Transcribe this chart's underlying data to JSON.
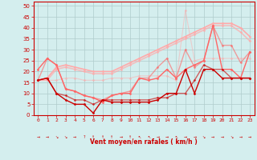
{
  "x": [
    0,
    1,
    2,
    3,
    4,
    5,
    6,
    7,
    8,
    9,
    10,
    11,
    12,
    13,
    14,
    15,
    16,
    17,
    18,
    19,
    20,
    21,
    22,
    23
  ],
  "lines": [
    {
      "y": [
        16,
        17,
        22,
        23,
        22,
        21,
        20,
        20,
        20,
        22,
        24,
        26,
        28,
        30,
        32,
        34,
        36,
        38,
        40,
        42,
        42,
        42,
        40,
        36
      ],
      "color": "#ffaaaa",
      "alpha": 1.0,
      "lw": 1.2,
      "marker": "D",
      "ms": 1.5
    },
    {
      "y": [
        16,
        16,
        21,
        22,
        21,
        20,
        19,
        19,
        19,
        21,
        23,
        25,
        27,
        29,
        31,
        33,
        35,
        37,
        39,
        41,
        41,
        41,
        38,
        34
      ],
      "color": "#ffaaaa",
      "alpha": 0.7,
      "lw": 1.2,
      "marker": "D",
      "ms": 1.5
    },
    {
      "y": [
        16,
        16,
        16,
        17,
        17,
        16,
        16,
        16,
        17,
        17,
        17,
        18,
        18,
        18,
        18,
        16,
        48,
        25,
        26,
        26,
        26,
        26,
        26,
        26
      ],
      "color": "#ffaaaa",
      "alpha": 0.5,
      "lw": 0.8,
      "marker": "D",
      "ms": 1.5
    },
    {
      "y": [
        21,
        26,
        23,
        12,
        11,
        9,
        8,
        6,
        9,
        10,
        10,
        17,
        16,
        17,
        21,
        17,
        21,
        23,
        25,
        41,
        21,
        21,
        17,
        29
      ],
      "color": "#ff6666",
      "alpha": 1.0,
      "lw": 1.0,
      "marker": "D",
      "ms": 1.5
    },
    {
      "y": [
        16,
        26,
        23,
        12,
        11,
        9,
        8,
        7,
        9,
        10,
        11,
        17,
        17,
        22,
        26,
        17,
        30,
        22,
        25,
        41,
        32,
        32,
        24,
        29
      ],
      "color": "#ff6666",
      "alpha": 0.6,
      "lw": 1.0,
      "marker": "D",
      "ms": 1.5
    },
    {
      "y": [
        16,
        17,
        10,
        7,
        5,
        5,
        1,
        7,
        6,
        6,
        6,
        6,
        6,
        7,
        10,
        10,
        21,
        10,
        21,
        21,
        17,
        17,
        17,
        17
      ],
      "color": "#cc0000",
      "alpha": 1.0,
      "lw": 1.0,
      "marker": "D",
      "ms": 1.5
    },
    {
      "y": [
        16,
        17,
        10,
        9,
        7,
        7,
        5,
        7,
        7,
        7,
        7,
        7,
        7,
        8,
        8,
        10,
        10,
        16,
        23,
        21,
        21,
        17,
        17,
        17
      ],
      "color": "#cc0000",
      "alpha": 0.6,
      "lw": 1.0,
      "marker": "D",
      "ms": 1.5
    }
  ],
  "wind_arrows": [
    "→",
    "→",
    "↘",
    "↘",
    "→",
    "?",
    "↑",
    "↑",
    "↑",
    "→",
    "↑",
    "↖",
    "↖",
    "→",
    "→",
    "↖",
    "→",
    "→",
    "↘",
    "→",
    "→",
    "↘",
    "→",
    "→"
  ],
  "xlabel": "Vent moyen/en rafales ( km/h )",
  "ylim": [
    0,
    52
  ],
  "yticks": [
    0,
    5,
    10,
    15,
    20,
    25,
    30,
    35,
    40,
    45,
    50
  ],
  "xlim": [
    -0.5,
    23.5
  ],
  "bg_color": "#d4eeee",
  "grid_color": "#b0cccc",
  "axis_color": "#cc0000"
}
